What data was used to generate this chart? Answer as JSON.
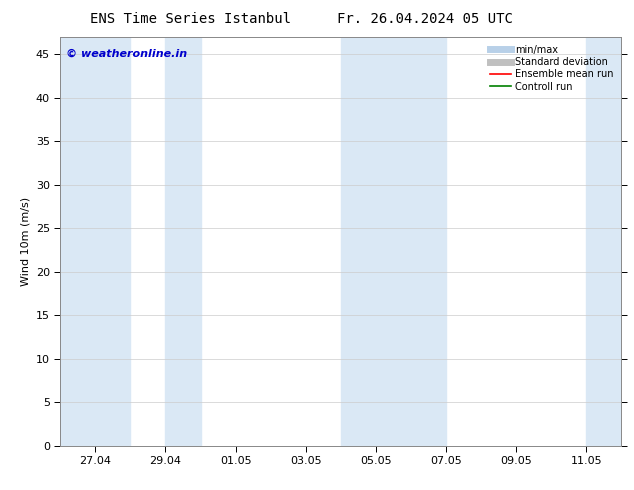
{
  "title_left": "ENS Time Series Istanbul",
  "title_right": "Fr. 26.04.2024 05 UTC",
  "ylabel": "Wind 10m (m/s)",
  "watermark": "© weatheronline.in",
  "watermark_color": "#0000cc",
  "ylim": [
    0,
    47
  ],
  "yticks": [
    0,
    5,
    10,
    15,
    20,
    25,
    30,
    35,
    40,
    45
  ],
  "x_start": "2024-04-26",
  "x_end": "2024-05-12",
  "xtick_labels": [
    "27.04",
    "29.04",
    "01.05",
    "03.05",
    "05.05",
    "07.05",
    "09.05",
    "11.05"
  ],
  "xtick_dates": [
    "2024-04-27",
    "2024-04-29",
    "2024-05-01",
    "2024-05-03",
    "2024-05-05",
    "2024-05-07",
    "2024-05-09",
    "2024-05-11"
  ],
  "shaded_bands": [
    {
      "start": "2024-04-26",
      "end": "2024-04-28"
    },
    {
      "start": "2024-04-29",
      "end": "2024-04-30"
    },
    {
      "start": "2024-05-04",
      "end": "2024-05-07"
    },
    {
      "start": "2024-05-11",
      "end": "2024-05-12"
    }
  ],
  "shade_color": "#dae8f5",
  "bg_color": "#ffffff",
  "legend_items": [
    {
      "label": "min/max",
      "color": "#b8d0e8",
      "lw": 5,
      "linestyle": "-"
    },
    {
      "label": "Standard deviation",
      "color": "#c0c0c0",
      "lw": 5,
      "linestyle": "-"
    },
    {
      "label": "Ensemble mean run",
      "color": "#ff0000",
      "lw": 1.2,
      "linestyle": "-"
    },
    {
      "label": "Controll run",
      "color": "#008000",
      "lw": 1.2,
      "linestyle": "-"
    }
  ],
  "title_fontsize": 10,
  "axis_fontsize": 8,
  "tick_fontsize": 8
}
